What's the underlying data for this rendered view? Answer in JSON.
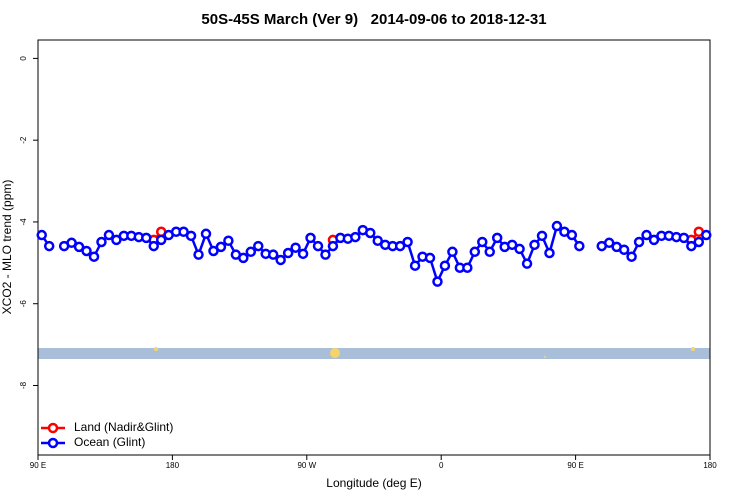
{
  "chart_data": {
    "type": "line",
    "title": "50S-45S March (Ver 9)   2014-09-06 to 2018-12-31",
    "xlabel": "Longitude (deg E)",
    "ylabel": "XCO2 - MLO trend (ppm)",
    "xlim": [
      90,
      540
    ],
    "ylim": [
      -9.7,
      0.45
    ],
    "xticks": [
      {
        "value": 90,
        "label": "90 E"
      },
      180,
      {
        "value": 270,
        "label": "90 W"
      },
      {
        "value": 360,
        "label": "0"
      },
      {
        "value": 450,
        "label": "90 E"
      },
      {
        "value": 540,
        "label": "180"
      }
    ],
    "yticks": [
      0,
      -2,
      -4,
      -6,
      -8
    ],
    "legend": "bottom-left",
    "x": [
      92.5,
      97.5,
      102.5,
      107.5,
      112.5,
      117.5,
      122.5,
      127.5,
      132.5,
      137.5,
      142.5,
      147.5,
      152.5,
      157.5,
      162.5,
      167.5,
      172.5,
      177.5,
      182.5,
      187.5,
      192.5,
      197.5,
      202.5,
      207.5,
      212.5,
      217.5,
      222.5,
      227.5,
      232.5,
      237.5,
      242.5,
      247.5,
      252.5,
      257.5,
      262.5,
      267.5,
      272.5,
      277.5,
      282.5,
      287.5,
      292.5,
      297.5,
      302.5,
      307.5,
      312.5,
      317.5,
      322.5,
      327.5,
      332.5,
      337.5,
      342.5,
      347.5,
      352.5,
      357.5,
      362.5,
      367.5,
      372.5,
      377.5,
      382.5,
      387.5,
      392.5,
      397.5,
      402.5,
      407.5,
      412.5,
      417.5,
      422.5,
      427.5,
      432.5,
      437.5,
      442.5,
      447.5,
      452.5,
      457.5,
      462.5,
      467.5,
      472.5,
      477.5,
      482.5,
      487.5,
      492.5,
      497.5,
      502.5,
      507.5,
      512.5,
      517.5,
      522.5,
      527.5,
      532.5,
      537.5
    ],
    "series": [
      {
        "name": "Land (Nadir&Glint)",
        "color": "#ff0000",
        "values": [
          null,
          null,
          null,
          null,
          null,
          null,
          null,
          null,
          null,
          null,
          null,
          null,
          null,
          null,
          null,
          -4.44,
          -4.24,
          null,
          null,
          null,
          null,
          null,
          null,
          null,
          null,
          null,
          null,
          null,
          null,
          null,
          null,
          null,
          null,
          null,
          null,
          null,
          null,
          null,
          null,
          -4.44,
          null,
          null,
          null,
          null,
          null,
          null,
          null,
          null,
          null,
          null,
          null,
          null,
          null,
          null,
          null,
          null,
          null,
          null,
          null,
          null,
          null,
          null,
          null,
          null,
          null,
          null,
          null,
          null,
          null,
          null,
          null,
          null,
          null,
          null,
          null,
          null,
          null,
          null,
          null,
          null,
          null,
          null,
          null,
          null,
          null,
          null,
          null,
          -4.44,
          -4.24,
          null
        ]
      },
      {
        "name": "Ocean (Glint)",
        "color": "#0000ff",
        "values": [
          -4.32,
          -4.59,
          null,
          -4.59,
          -4.51,
          -4.61,
          -4.71,
          -4.85,
          -4.49,
          -4.32,
          -4.44,
          -4.34,
          -4.34,
          -4.37,
          -4.39,
          -4.59,
          -4.44,
          -4.32,
          -4.24,
          -4.24,
          -4.34,
          -4.8,
          -4.29,
          -4.71,
          -4.61,
          -4.46,
          -4.8,
          -4.88,
          -4.73,
          -4.59,
          -4.78,
          -4.8,
          -4.93,
          -4.76,
          -4.63,
          -4.78,
          -4.39,
          -4.59,
          -4.8,
          -4.59,
          -4.39,
          -4.41,
          -4.37,
          -4.2,
          -4.27,
          -4.46,
          -4.56,
          -4.59,
          -4.59,
          -4.49,
          -5.07,
          -4.85,
          -4.88,
          -5.46,
          -5.07,
          -4.73,
          -5.12,
          -5.12,
          -4.73,
          -4.49,
          -4.73,
          -4.39,
          -4.61,
          -4.56,
          -4.66,
          -5.02,
          -4.56,
          -4.34,
          -4.76,
          -4.1,
          -4.24,
          -4.32,
          -4.59,
          null,
          null,
          -4.59,
          -4.51,
          -4.61,
          -4.68,
          -4.85,
          -4.49,
          -4.32,
          -4.44,
          -4.34,
          -4.34,
          -4.37,
          -4.39,
          -4.59,
          -4.49,
          -4.32
        ]
      }
    ]
  }
}
